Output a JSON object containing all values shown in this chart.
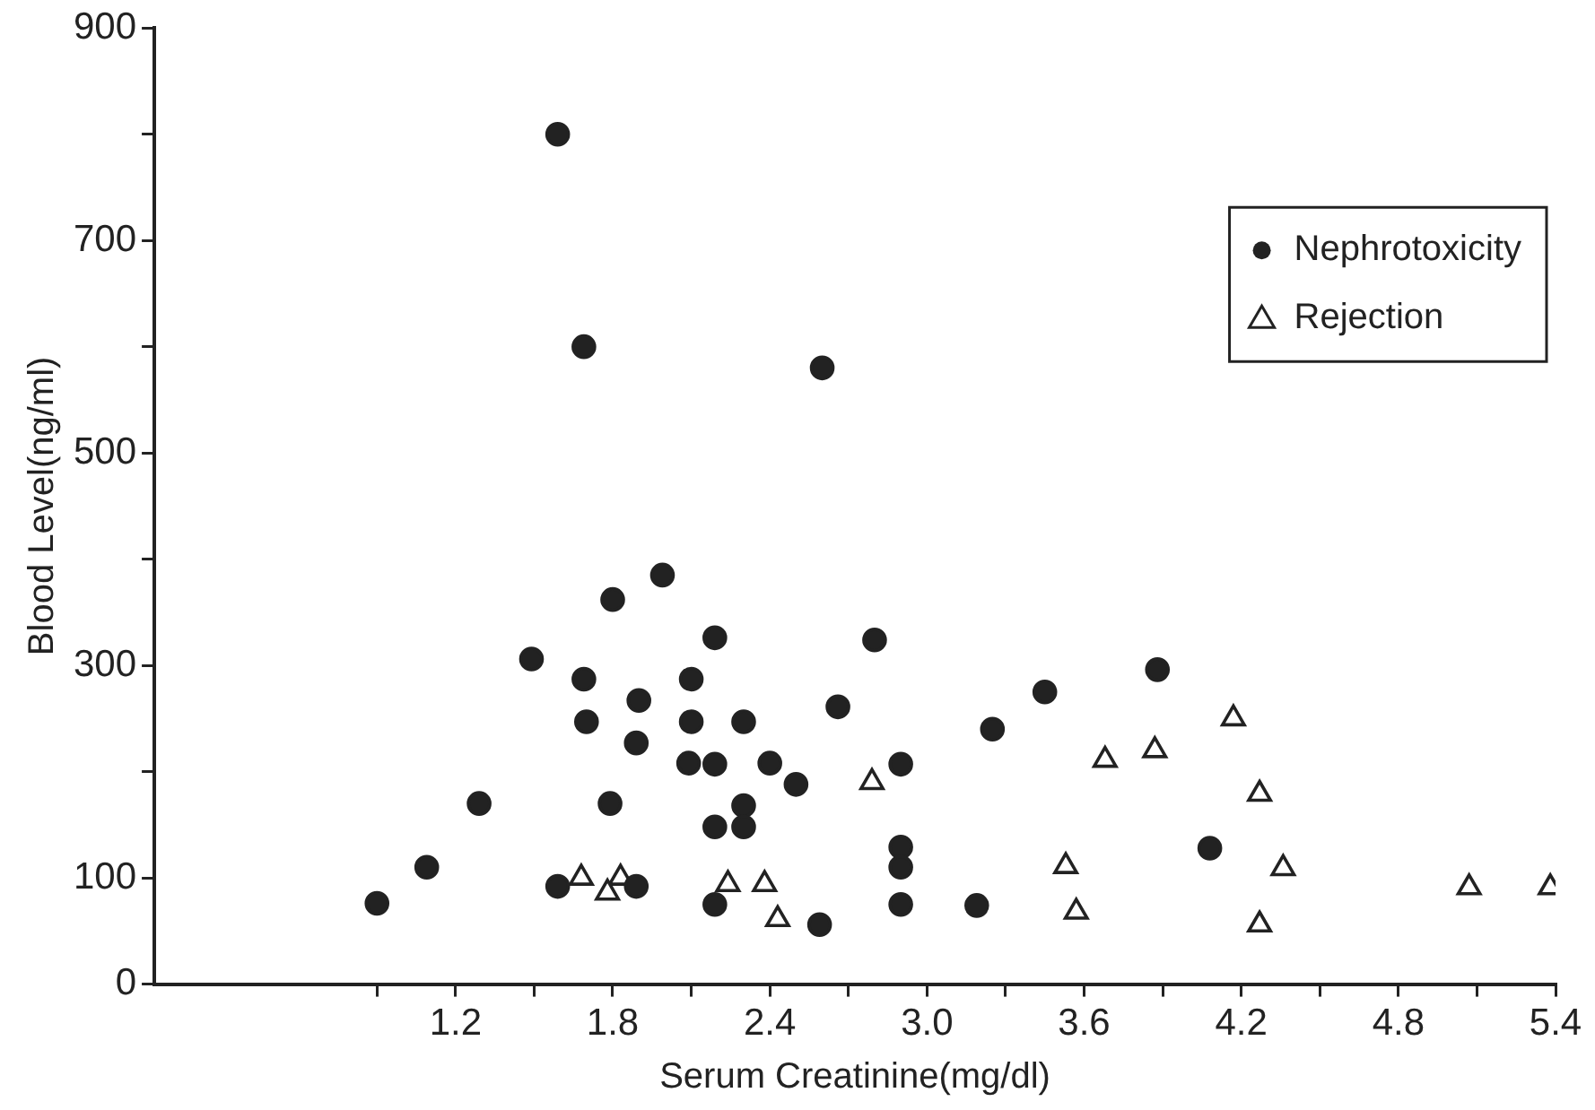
{
  "chart_data": {
    "type": "scatter",
    "xlabel": "Serum Creatinine(mg/dl)",
    "ylabel": "Blood Level(ng/ml)",
    "xlim": [
      0.05,
      5.4
    ],
    "xticks": [
      {
        "value": 0.9,
        "label": null
      },
      1.2,
      {
        "value": 1.5,
        "label": null
      },
      1.8,
      {
        "value": 2.1,
        "label": null
      },
      {
        "value": 2.4,
        "label": "2.4"
      },
      {
        "value": 2.7,
        "label": null
      },
      {
        "value": 3.0,
        "label": "3.0"
      },
      {
        "value": 3.3,
        "label": null
      },
      3.6,
      {
        "value": 3.9,
        "label": null
      },
      4.2,
      {
        "value": 4.5,
        "label": null
      },
      4.8,
      {
        "value": 5.1,
        "label": null
      },
      5.4
    ],
    "ylim": [
      0,
      900
    ],
    "yticks": [
      0,
      100,
      {
        "value": 200,
        "label": null
      },
      300,
      {
        "value": 400,
        "label": null
      },
      500,
      {
        "value": 600,
        "label": null
      },
      700,
      {
        "value": 800,
        "label": null
      },
      900
    ],
    "grid": false,
    "legend": "top right",
    "series": [
      {
        "name": "Nephrotoxicity",
        "color": "#222222",
        "marker": "circle",
        "x": [
          1.59,
          1.69,
          2.6,
          1.99,
          1.8,
          2.19,
          2.8,
          1.49,
          1.69,
          1.9,
          2.1,
          2.66,
          3.45,
          1.7,
          2.1,
          2.3,
          3.25,
          1.89,
          2.09,
          2.19,
          2.4,
          2.5,
          2.9,
          1.29,
          1.79,
          2.3,
          2.3,
          2.19,
          2.9,
          2.9,
          1.09,
          0.9,
          1.59,
          1.89,
          2.19,
          2.59,
          2.9,
          3.19,
          3.88,
          4.08
        ],
        "values": [
          800,
          600,
          580,
          385,
          362,
          326,
          324,
          306,
          287,
          267,
          287,
          261,
          275,
          247,
          247,
          247,
          240,
          227,
          208,
          207,
          208,
          188,
          207,
          170,
          170,
          168,
          148,
          148,
          129,
          110,
          110,
          76,
          92,
          92,
          75,
          56,
          75,
          74,
          296,
          128
        ]
      },
      {
        "name": "Rejection",
        "color": "#222222",
        "marker": "triangle",
        "x": [
          1.68,
          1.83,
          1.78,
          2.24,
          2.38,
          2.43,
          2.79,
          4.17,
          3.68,
          3.87,
          4.27,
          3.53,
          4.36,
          5.07,
          5.38,
          3.57,
          4.27
        ],
        "values": [
          100,
          100,
          86,
          94,
          94,
          61,
          190,
          250,
          211,
          220,
          179,
          111,
          109,
          91,
          91,
          68,
          56
        ]
      }
    ]
  }
}
